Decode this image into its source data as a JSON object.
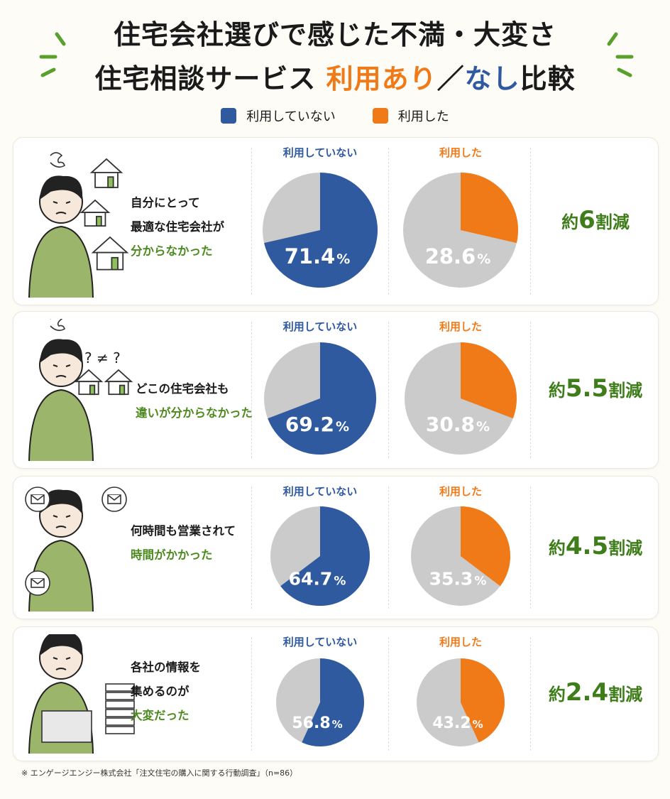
{
  "title_line1": "住宅会社選びで感じた不満・大変さ",
  "title_line2_prefix": "住宅相談サービス",
  "title_line2_accent1": "利用あり",
  "title_line2_slash": "／",
  "title_line2_accent2": "なし",
  "title_line2_suffix": "比較",
  "legend": [
    {
      "label": "利用していない",
      "color": "#2f5aa0"
    },
    {
      "label": "利用した",
      "color": "#f07a18"
    }
  ],
  "colors": {
    "not_used": "#2f5aa0",
    "used": "#f07a18",
    "rest": "#cbcbcb",
    "accent_green": "#4d8a1f"
  },
  "rows": [
    {
      "q_black": [
        "自分にとって",
        "最適な住宅会社が"
      ],
      "q_green": [
        "分からなかった"
      ],
      "label_not_used": "利用していない",
      "label_used": "利用した",
      "not_used_text": "71.4",
      "used_text": "28.6",
      "pct_sign": "%",
      "reduce_prefix": "約",
      "reduce_num": "6",
      "reduce_suffix": "割減"
    },
    {
      "q_black": [
        "どこの住宅会社も"
      ],
      "q_green": [
        "違いが分からなかった"
      ],
      "label_not_used": "利用していない",
      "label_used": "利用した",
      "not_used_text": "69.2",
      "used_text": "30.8",
      "pct_sign": "%",
      "reduce_prefix": "約",
      "reduce_num": "5.5",
      "reduce_suffix": "割減"
    },
    {
      "q_black": [
        "何時間も営業されて"
      ],
      "q_green": [
        "時間がかかった"
      ],
      "label_not_used": "利用していない",
      "label_used": "利用した",
      "not_used_text": "64.7",
      "used_text": "35.3",
      "pct_sign": "%",
      "reduce_prefix": "約",
      "reduce_num": "4.5",
      "reduce_suffix": "割減"
    },
    {
      "q_black": [
        "各社の情報を",
        "集めるのが"
      ],
      "q_green": [
        "大変だった"
      ],
      "label_not_used": "利用していない",
      "label_used": "利用した",
      "not_used_text": "56.8",
      "used_text": "43.2",
      "pct_sign": "%",
      "reduce_prefix": "約",
      "reduce_num": "2.4",
      "reduce_suffix": "割減"
    }
  ],
  "illus_text": {
    "neq": "? ≠ ?"
  },
  "chart_data": {
    "type": "pie",
    "series": [
      {
        "name": "利用していない",
        "values": [
          71.4,
          69.2,
          64.7,
          56.8
        ]
      },
      {
        "name": "利用した",
        "values": [
          28.6,
          30.8,
          35.3,
          43.2
        ]
      }
    ],
    "categories": [
      "自分にとって最適な住宅会社が分からなかった",
      "どこの住宅会社も違いが分からなかった",
      "何時間も営業されて時間がかかった",
      "各社の情報を集めるのが大変だった"
    ],
    "unit": "%"
  },
  "footnote": "※ エンゲージエンジー株式会社「注文住宅の購入に関する行動調査」（n=86）"
}
